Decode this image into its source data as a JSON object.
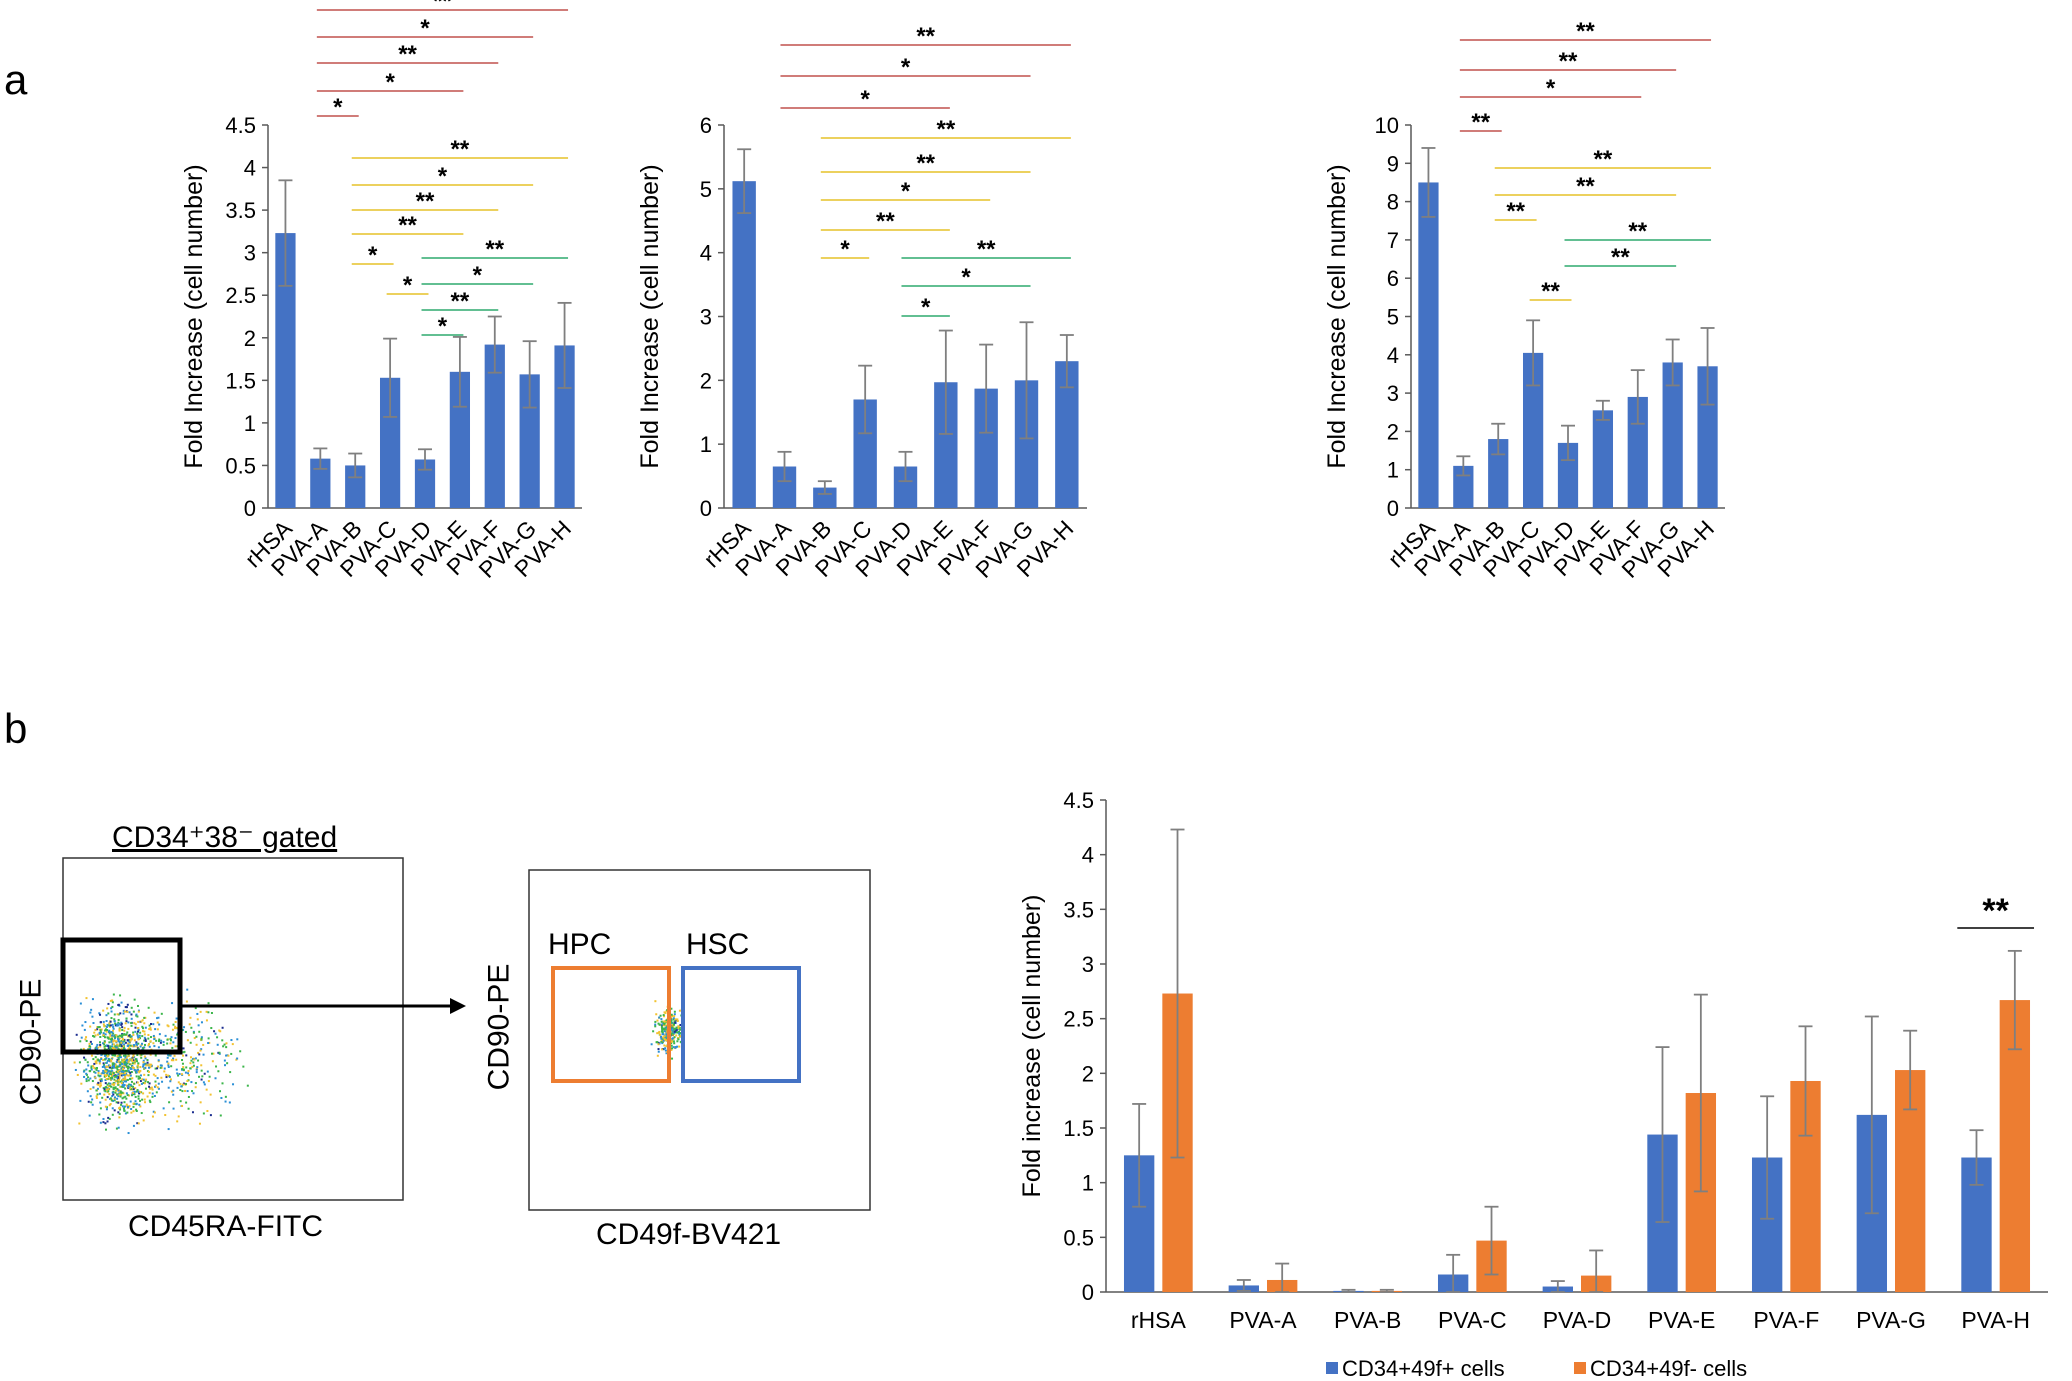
{
  "panel_labels": {
    "a": "a",
    "b": "b"
  },
  "colors": {
    "bar_blue": "#4472C4",
    "bar_orange": "#ED7D31",
    "sig_red": "#C0504D",
    "sig_yellow": "#E6C229",
    "sig_green": "#2EAA6E",
    "error_bar": "#7F7F7F"
  },
  "flow": {
    "gate_title": "CD34⁺38⁻ gated",
    "plot1_ylabel": "CD90-PE",
    "plot1_xlabel": "CD45RA-FITC",
    "plot2_ylabel": "CD90-PE",
    "plot2_xlabel": "CD49f-BV421",
    "hpc_label": "HPC",
    "hsc_label": "HSC"
  },
  "chart_data": [
    {
      "type": "bar",
      "panel": "a",
      "categories": [
        "rHSA",
        "PVA-A",
        "PVA-B",
        "PVA-C",
        "PVA-D",
        "PVA-E",
        "PVA-F",
        "PVA-G",
        "PVA-H"
      ],
      "values": [
        3.23,
        0.58,
        0.5,
        1.53,
        0.57,
        1.6,
        1.92,
        1.57,
        1.91
      ],
      "errors": [
        0.62,
        0.12,
        0.14,
        0.46,
        0.12,
        0.41,
        0.33,
        0.39,
        0.5
      ],
      "ylabel": "Fold Increase (cell number)",
      "ylim": [
        0,
        4.5
      ],
      "yticks": [
        "0",
        "0.5",
        "1",
        "1.5",
        "2",
        "2.5",
        "3",
        "3.5",
        "4",
        "4.5"
      ],
      "grid": false,
      "significance": [
        {
          "from": 1,
          "to": 8,
          "label": "**",
          "color": "red"
        },
        {
          "from": 1,
          "to": 7,
          "label": "*",
          "color": "red"
        },
        {
          "from": 1,
          "to": 6,
          "label": "**",
          "color": "red"
        },
        {
          "from": 1,
          "to": 5,
          "label": "*",
          "color": "red"
        },
        {
          "from": 1,
          "to": 2,
          "label": "*",
          "color": "red"
        },
        {
          "from": 2,
          "to": 8,
          "label": "**",
          "color": "yellow"
        },
        {
          "from": 2,
          "to": 7,
          "label": "*",
          "color": "yellow"
        },
        {
          "from": 2,
          "to": 6,
          "label": "**",
          "color": "yellow"
        },
        {
          "from": 2,
          "to": 5,
          "label": "**",
          "color": "yellow"
        },
        {
          "from": 2,
          "to": 3,
          "label": "*",
          "color": "yellow"
        },
        {
          "from": 3,
          "to": 4,
          "label": "*",
          "color": "yellow"
        },
        {
          "from": 4,
          "to": 8,
          "label": "**",
          "color": "green"
        },
        {
          "from": 4,
          "to": 7,
          "label": "*",
          "color": "green"
        },
        {
          "from": 4,
          "to": 6,
          "label": "**",
          "color": "green"
        },
        {
          "from": 4,
          "to": 5,
          "label": "*",
          "color": "green"
        }
      ]
    },
    {
      "type": "bar",
      "panel": "a",
      "categories": [
        "rHSA",
        "PVA-A",
        "PVA-B",
        "PVA-C",
        "PVA-D",
        "PVA-E",
        "PVA-F",
        "PVA-G",
        "PVA-H"
      ],
      "values": [
        5.12,
        0.65,
        0.32,
        1.7,
        0.65,
        1.97,
        1.87,
        2.0,
        2.3
      ],
      "errors": [
        0.5,
        0.23,
        0.1,
        0.53,
        0.23,
        0.81,
        0.69,
        0.91,
        0.41
      ],
      "ylabel": "Fold Increase (cell number)",
      "ylim": [
        0,
        6
      ],
      "yticks": [
        "0",
        "1",
        "2",
        "3",
        "4",
        "5",
        "6"
      ],
      "grid": false,
      "significance": [
        {
          "from": 1,
          "to": 8,
          "label": "**",
          "color": "red"
        },
        {
          "from": 1,
          "to": 7,
          "label": "*",
          "color": "red"
        },
        {
          "from": 1,
          "to": 5,
          "label": "*",
          "color": "red"
        },
        {
          "from": 2,
          "to": 8,
          "label": "**",
          "color": "yellow"
        },
        {
          "from": 2,
          "to": 7,
          "label": "**",
          "color": "yellow"
        },
        {
          "from": 2,
          "to": 6,
          "label": "*",
          "color": "yellow"
        },
        {
          "from": 2,
          "to": 5,
          "label": "**",
          "color": "yellow"
        },
        {
          "from": 2,
          "to": 3,
          "label": "*",
          "color": "yellow"
        },
        {
          "from": 4,
          "to": 8,
          "label": "**",
          "color": "green"
        },
        {
          "from": 4,
          "to": 7,
          "label": "*",
          "color": "green"
        },
        {
          "from": 4,
          "to": 5,
          "label": "*",
          "color": "green"
        }
      ]
    },
    {
      "type": "bar",
      "panel": "a",
      "categories": [
        "rHSA",
        "PVA-A",
        "PVA-B",
        "PVA-C",
        "PVA-D",
        "PVA-E",
        "PVA-F",
        "PVA-G",
        "PVA-H"
      ],
      "values": [
        8.5,
        1.1,
        1.8,
        4.05,
        1.7,
        2.55,
        2.9,
        3.8,
        3.7
      ],
      "errors": [
        0.9,
        0.25,
        0.4,
        0.85,
        0.45,
        0.25,
        0.7,
        0.6,
        1.0
      ],
      "ylabel": "Fold Increase (cell number)",
      "ylim": [
        0,
        10
      ],
      "yticks": [
        "0",
        "1",
        "2",
        "3",
        "4",
        "5",
        "6",
        "7",
        "8",
        "9",
        "10"
      ],
      "grid": false,
      "significance": [
        {
          "from": 1,
          "to": 8,
          "label": "**",
          "color": "red"
        },
        {
          "from": 1,
          "to": 7,
          "label": "**",
          "color": "red"
        },
        {
          "from": 1,
          "to": 6,
          "label": "*",
          "color": "red"
        },
        {
          "from": 1,
          "to": 2,
          "label": "**",
          "color": "red"
        },
        {
          "from": 2,
          "to": 8,
          "label": "**",
          "color": "yellow"
        },
        {
          "from": 2,
          "to": 7,
          "label": "**",
          "color": "yellow"
        },
        {
          "from": 2,
          "to": 3,
          "label": "**",
          "color": "yellow"
        },
        {
          "from": 3,
          "to": 4,
          "label": "**",
          "color": "yellow"
        },
        {
          "from": 4,
          "to": 8,
          "label": "**",
          "color": "green"
        },
        {
          "from": 4,
          "to": 7,
          "label": "**",
          "color": "green"
        }
      ]
    },
    {
      "type": "bar",
      "panel": "b",
      "categories": [
        "rHSA",
        "PVA-A",
        "PVA-B",
        "PVA-C",
        "PVA-D",
        "PVA-E",
        "PVA-F",
        "PVA-G",
        "PVA-H"
      ],
      "series": [
        {
          "name": "CD34+49f+ cells",
          "color": "#4472C4",
          "values": [
            1.25,
            0.06,
            0.01,
            0.16,
            0.05,
            1.44,
            1.23,
            1.62,
            1.23
          ],
          "errors": [
            0.47,
            0.05,
            0.01,
            0.18,
            0.05,
            0.8,
            0.56,
            0.9,
            0.25
          ]
        },
        {
          "name": "CD34+49f- cells",
          "color": "#ED7D31",
          "values": [
            2.73,
            0.11,
            0.01,
            0.47,
            0.15,
            1.82,
            1.93,
            2.03,
            2.67
          ],
          "errors": [
            1.5,
            0.15,
            0.01,
            0.31,
            0.23,
            0.9,
            0.5,
            0.36,
            0.45
          ]
        }
      ],
      "ylabel": "Fold increase (cell number)",
      "ylim": [
        0,
        4.5
      ],
      "yticks": [
        "0",
        "0.5",
        "1",
        "1.5",
        "2",
        "2.5",
        "3",
        "3.5",
        "4",
        "4.5"
      ],
      "grid": false,
      "legend": "bottom",
      "significance": [
        {
          "category": 8,
          "label": "**"
        }
      ]
    }
  ]
}
